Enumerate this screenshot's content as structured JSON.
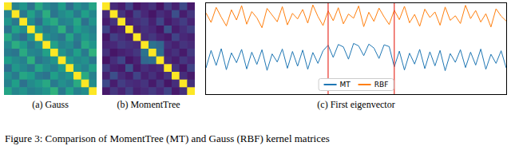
{
  "chart_data": [
    {
      "type": "heatmap",
      "title": "(a) Gauss",
      "tick_labels": false,
      "cells": [
        [
          1,
          0.45,
          0.52,
          0.38,
          0.6,
          0.47,
          0.42,
          0.55,
          0.36,
          0.5,
          0.44,
          0.58
        ],
        [
          0.45,
          1,
          0.4,
          0.57,
          0.43,
          0.62,
          0.39,
          0.48,
          0.53,
          0.41,
          0.56,
          0.46
        ],
        [
          0.52,
          0.4,
          1,
          0.49,
          0.35,
          0.54,
          0.61,
          0.44,
          0.47,
          0.59,
          0.37,
          0.51
        ],
        [
          0.38,
          0.57,
          0.49,
          1,
          0.52,
          0.41,
          0.46,
          0.63,
          0.4,
          0.55,
          0.48,
          0.43
        ],
        [
          0.6,
          0.43,
          0.35,
          0.52,
          1,
          0.5,
          0.44,
          0.39,
          0.58,
          0.42,
          0.53,
          0.47
        ],
        [
          0.47,
          0.62,
          0.54,
          0.41,
          0.5,
          1,
          0.57,
          0.45,
          0.49,
          0.38,
          0.6,
          0.52
        ],
        [
          0.42,
          0.39,
          0.61,
          0.46,
          0.44,
          0.57,
          1,
          0.51,
          0.43,
          0.56,
          0.41,
          0.64
        ],
        [
          0.55,
          0.48,
          0.44,
          0.63,
          0.39,
          0.45,
          0.51,
          1,
          0.54,
          0.47,
          0.5,
          0.4
        ],
        [
          0.36,
          0.53,
          0.47,
          0.4,
          0.58,
          0.49,
          0.43,
          0.54,
          1,
          0.52,
          0.45,
          0.57
        ],
        [
          0.5,
          0.41,
          0.59,
          0.55,
          0.42,
          0.38,
          0.56,
          0.47,
          0.52,
          1,
          0.61,
          0.44
        ],
        [
          0.44,
          0.56,
          0.37,
          0.48,
          0.53,
          0.6,
          0.41,
          0.5,
          0.45,
          0.61,
          1,
          0.49
        ],
        [
          0.58,
          0.46,
          0.51,
          0.43,
          0.47,
          0.52,
          0.64,
          0.4,
          0.57,
          0.44,
          0.49,
          1
        ]
      ]
    },
    {
      "type": "heatmap",
      "title": "(b) MomentTree",
      "tick_labels": false,
      "cells": [
        [
          1,
          0.12,
          0.08,
          0.2,
          0.06,
          0.1,
          0.14,
          0.05,
          0.18,
          0.09,
          0.22,
          0.07
        ],
        [
          0.12,
          1,
          0.15,
          0.07,
          0.19,
          0.11,
          0.06,
          0.13,
          0.09,
          0.24,
          0.08,
          0.16
        ],
        [
          0.08,
          0.15,
          1,
          0.1,
          0.13,
          0.17,
          0.09,
          0.21,
          0.07,
          0.12,
          0.18,
          0.1
        ],
        [
          0.2,
          0.07,
          0.1,
          1,
          0.09,
          0.14,
          0.11,
          0.06,
          0.25,
          0.08,
          0.13,
          0.19
        ],
        [
          0.06,
          0.19,
          0.13,
          0.09,
          1,
          0.12,
          0.16,
          0.1,
          0.07,
          0.2,
          0.11,
          0.09
        ],
        [
          0.1,
          0.11,
          0.17,
          0.14,
          0.12,
          1,
          0.38,
          0.33,
          0.13,
          0.09,
          0.15,
          0.12
        ],
        [
          0.14,
          0.06,
          0.09,
          0.11,
          0.16,
          0.38,
          1,
          0.36,
          0.1,
          0.14,
          0.07,
          0.17
        ],
        [
          0.05,
          0.13,
          0.21,
          0.06,
          0.1,
          0.33,
          0.36,
          1,
          0.12,
          0.08,
          0.16,
          0.11
        ],
        [
          0.18,
          0.09,
          0.07,
          0.25,
          0.07,
          0.13,
          0.1,
          0.12,
          1,
          0.15,
          0.06,
          0.2
        ],
        [
          0.09,
          0.24,
          0.12,
          0.08,
          0.2,
          0.09,
          0.14,
          0.08,
          0.15,
          1,
          0.13,
          0.07
        ],
        [
          0.22,
          0.08,
          0.18,
          0.13,
          0.11,
          0.15,
          0.07,
          0.16,
          0.06,
          0.13,
          1,
          0.14
        ],
        [
          0.07,
          0.16,
          0.1,
          0.19,
          0.09,
          0.12,
          0.17,
          0.11,
          0.2,
          0.07,
          0.14,
          1
        ]
      ]
    },
    {
      "type": "line",
      "title": "(c) First eigenvector",
      "tick_labels": false,
      "legend": "bottom",
      "xlim": [
        0,
        59
      ],
      "ylim": [
        -1.6,
        1
      ],
      "x": [
        0,
        1,
        2,
        3,
        4,
        5,
        6,
        7,
        8,
        9,
        10,
        11,
        12,
        13,
        14,
        15,
        16,
        17,
        18,
        19,
        20,
        21,
        22,
        23,
        24,
        25,
        26,
        27,
        28,
        29,
        30,
        31,
        32,
        33,
        34,
        35,
        36,
        37,
        38,
        39,
        40,
        41,
        42,
        43,
        44,
        45,
        46,
        47,
        48,
        49,
        50,
        51,
        52,
        53,
        54,
        55,
        56,
        57,
        58,
        59
      ],
      "reference_lines": {
        "values": [
          24,
          37
        ],
        "color": "#e8332a"
      },
      "series": [
        {
          "name": "MT",
          "color": "#1f77b4",
          "values": [
            -0.85,
            -0.35,
            -0.78,
            -0.3,
            -0.9,
            -0.42,
            -0.7,
            -0.32,
            -0.88,
            -0.4,
            -0.75,
            -0.33,
            -0.92,
            -0.45,
            -0.68,
            -0.31,
            -0.86,
            -0.38,
            -0.8,
            -0.34,
            -0.89,
            -0.41,
            -0.72,
            -0.36,
            -0.2,
            -0.55,
            -0.18,
            -0.25,
            -0.6,
            -0.15,
            -0.22,
            -0.5,
            -0.17,
            -0.28,
            -0.58,
            -0.19,
            -0.24,
            -0.82,
            -0.37,
            -0.91,
            -0.43,
            -0.74,
            -0.32,
            -0.87,
            -0.39,
            -0.79,
            -0.35,
            -0.93,
            -0.44,
            -0.69,
            -0.33,
            -0.84,
            -0.4,
            -0.77,
            -0.31,
            -0.89,
            -0.46,
            -0.72,
            -0.36,
            -0.85
          ]
        },
        {
          "name": "RBF",
          "color": "#ff7f0e",
          "values": [
            0.72,
            0.45,
            0.88,
            0.6,
            0.35,
            0.81,
            0.52,
            0.93,
            0.4,
            0.76,
            0.58,
            0.3,
            0.85,
            0.66,
            0.47,
            0.9,
            0.38,
            0.71,
            0.55,
            0.82,
            0.43,
            0.95,
            0.62,
            0.36,
            0.78,
            0.5,
            0.87,
            0.41,
            0.69,
            0.57,
            0.92,
            0.33,
            0.74,
            0.48,
            0.86,
            0.61,
            0.39,
            0.8,
            0.53,
            0.91,
            0.44,
            0.68,
            0.34,
            0.83,
            0.59,
            0.75,
            0.37,
            0.89,
            0.51,
            0.64,
            0.42,
            0.94,
            0.56,
            0.79,
            0.46,
            0.7,
            0.32,
            0.84,
            0.63,
            0.49
          ]
        }
      ]
    }
  ],
  "caption": "Figure 3: Comparison of MomentTree (MT) and Gauss (RBF) kernel matrices"
}
